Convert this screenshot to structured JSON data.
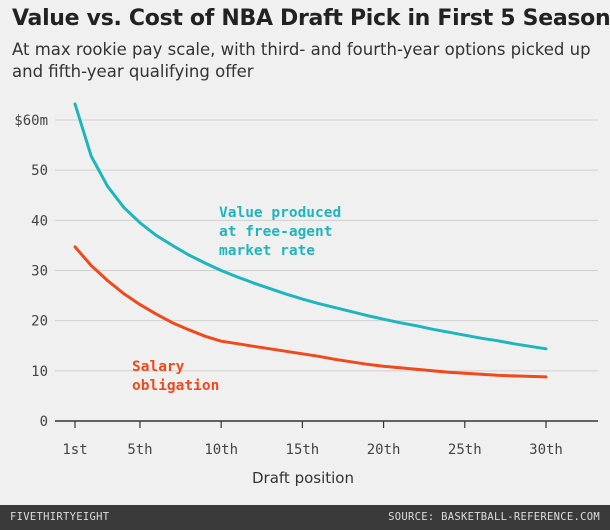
{
  "title": "Value vs. Cost of NBA Draft Pick in First 5 Seasons",
  "subtitle": "At max rookie pay scale, with third- and fourth-year options picked up and fifth-year qualifying offer",
  "footer": {
    "brand": "FIVETHIRTYEIGHT",
    "source": "SOURCE: BASKETBALL-REFERENCE.COM"
  },
  "chart_data": {
    "type": "line",
    "xlabel": "Draft position",
    "ylabel": "",
    "xlim": [
      1,
      30
    ],
    "ylim": [
      0,
      60
    ],
    "grid": true,
    "x_ticks": [
      1,
      5,
      10,
      15,
      20,
      25,
      30
    ],
    "x_tick_labels": [
      "1st",
      "5th",
      "10th",
      "15th",
      "20th",
      "25th",
      "30th"
    ],
    "y_ticks": [
      0,
      10,
      20,
      30,
      40,
      50,
      60
    ],
    "y_tick_labels": [
      "0",
      "10",
      "20",
      "30",
      "40",
      "50",
      "$60m"
    ],
    "series": [
      {
        "name": "Value produced at free-agent market rate",
        "label_lines": [
          "Value produced",
          "at free-agent",
          "market rate"
        ],
        "color": "#1fb5bd",
        "x": [
          1,
          2,
          3,
          4,
          5,
          6,
          7,
          8,
          9,
          10,
          11,
          12,
          13,
          14,
          15,
          16,
          17,
          18,
          19,
          20,
          21,
          22,
          23,
          24,
          25,
          26,
          27,
          28,
          29,
          30
        ],
        "values": [
          63.2,
          52.8,
          46.8,
          42.6,
          39.5,
          37.0,
          35.0,
          33.1,
          31.5,
          30.0,
          28.7,
          27.5,
          26.4,
          25.3,
          24.3,
          23.4,
          22.6,
          21.8,
          21.0,
          20.3,
          19.6,
          19.0,
          18.3,
          17.7,
          17.1,
          16.5,
          16.0,
          15.4,
          14.9,
          14.4
        ]
      },
      {
        "name": "Salary obligation",
        "label_lines": [
          "Salary",
          "obligation"
        ],
        "color": "#f0491c",
        "x": [
          1,
          2,
          3,
          4,
          5,
          6,
          7,
          8,
          9,
          10,
          11,
          12,
          13,
          14,
          15,
          16,
          17,
          18,
          19,
          20,
          21,
          22,
          23,
          24,
          25,
          26,
          27,
          28,
          29,
          30
        ],
        "values": [
          34.7,
          31.0,
          28.0,
          25.4,
          23.2,
          21.3,
          19.6,
          18.2,
          16.9,
          15.9,
          15.4,
          14.9,
          14.4,
          13.9,
          13.4,
          12.9,
          12.3,
          11.8,
          11.3,
          10.9,
          10.6,
          10.3,
          10.0,
          9.7,
          9.5,
          9.3,
          9.1,
          9.0,
          8.9,
          8.8
        ]
      }
    ]
  }
}
